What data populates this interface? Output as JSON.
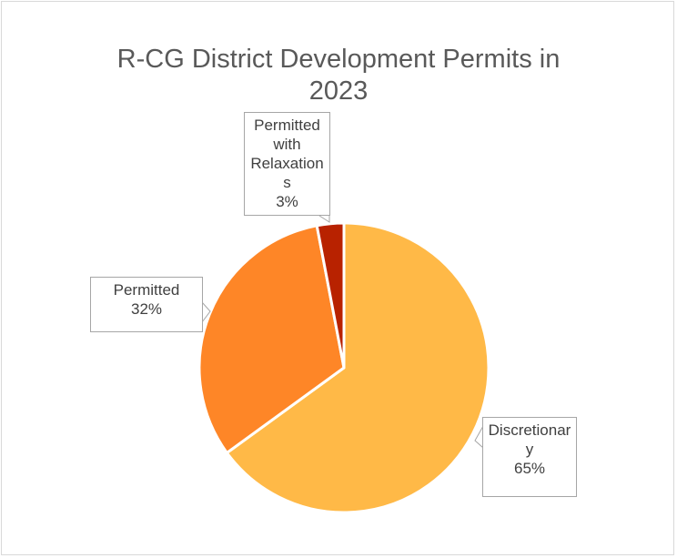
{
  "chart_data": {
    "type": "pie",
    "title": "R-CG District Development Permits in 2023",
    "categories": [
      "Discretionary",
      "Permitted",
      "Permitted with Relaxations"
    ],
    "values": [
      65,
      32,
      3
    ],
    "value_labels": [
      "65%",
      "32%",
      "3%"
    ],
    "colors": [
      "#ffb947",
      "#fe8627",
      "#b82200"
    ]
  }
}
